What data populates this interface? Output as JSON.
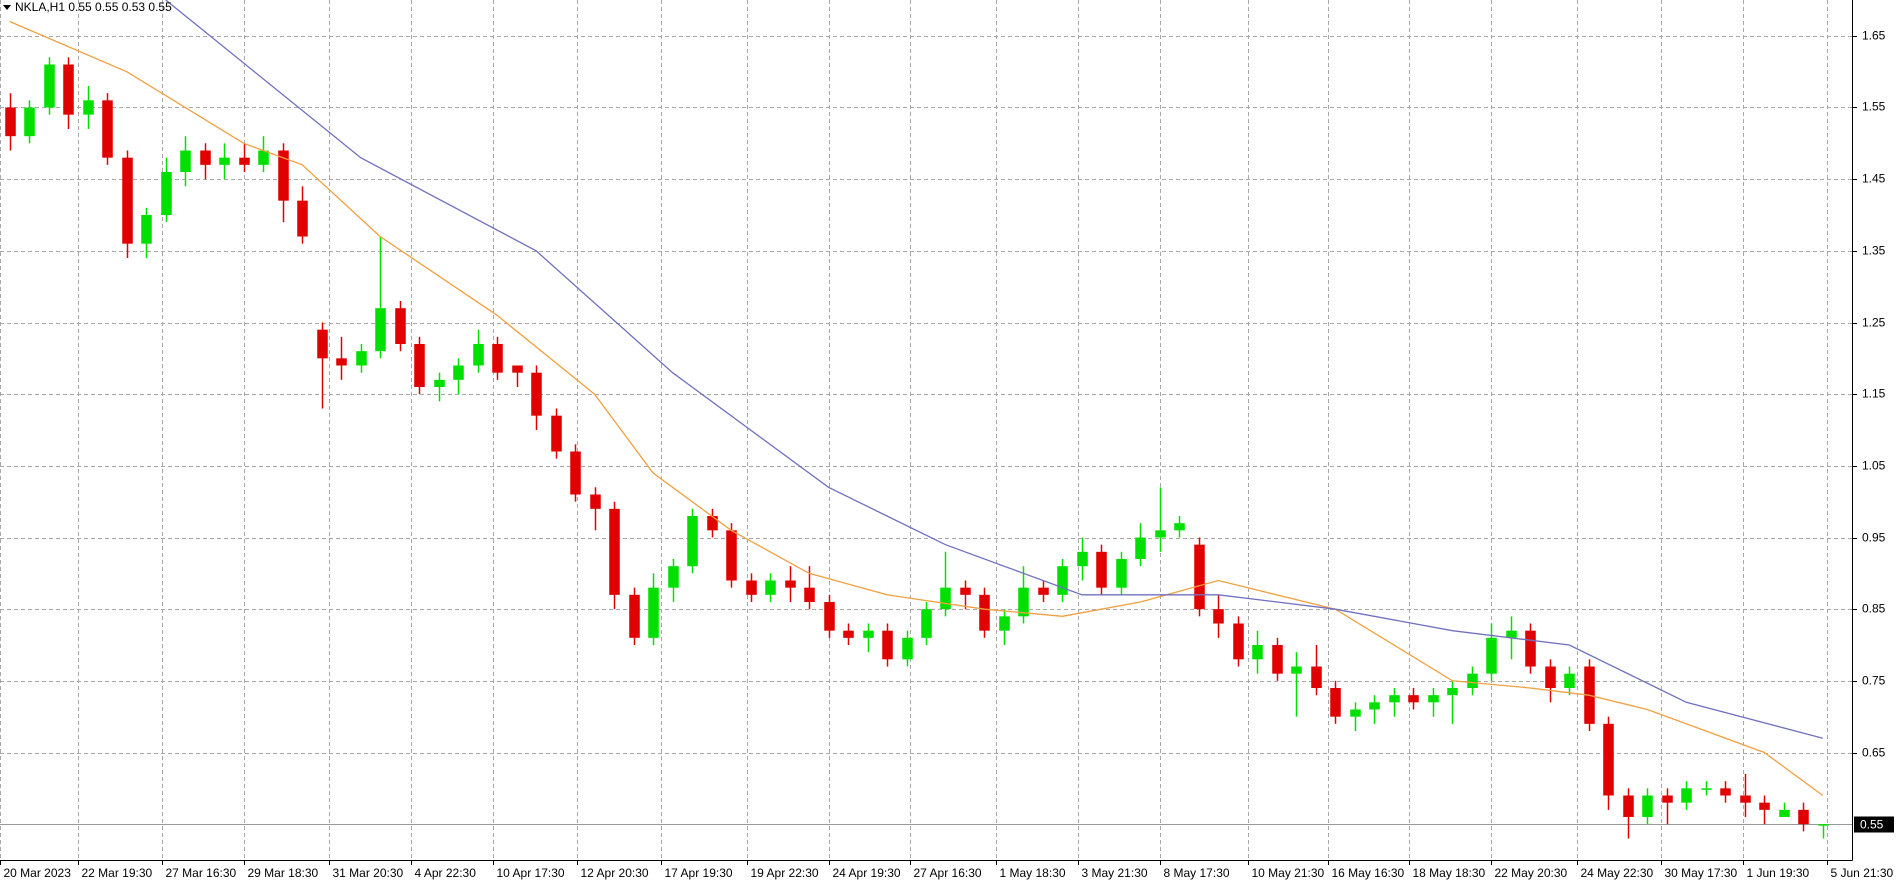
{
  "chart_data": {
    "type": "candlestick",
    "title": "NKLA,H1  0.55 0.55 0.53 0.55",
    "up_color": "#00e000",
    "down_color": "#e00000",
    "open": [
      1.55,
      1.51,
      1.55,
      1.61,
      1.54,
      1.56,
      1.48,
      1.36,
      1.4,
      1.46,
      1.49,
      1.47,
      1.48,
      1.47,
      1.49,
      1.42,
      1.24,
      1.2,
      1.19,
      1.21,
      1.27,
      1.22,
      1.16,
      1.17,
      1.19,
      1.22,
      1.19,
      1.18,
      1.12,
      1.07,
      1.01,
      0.99,
      0.87,
      0.81,
      0.88,
      0.91,
      0.98,
      0.96,
      0.89,
      0.87,
      0.89,
      0.88,
      0.86,
      0.82,
      0.81,
      0.82,
      0.78,
      0.81,
      0.85,
      0.88,
      0.87,
      0.82,
      0.84,
      0.88,
      0.87,
      0.91,
      0.93,
      0.88,
      0.92,
      0.95,
      0.96,
      0.94,
      0.85,
      0.83,
      0.78,
      0.8,
      0.76,
      0.77,
      0.74,
      0.7,
      0.71,
      0.72,
      0.73,
      0.72,
      0.73,
      0.74,
      0.76,
      0.81,
      0.82,
      0.77,
      0.74,
      0.77,
      0.69,
      0.59,
      0.56,
      0.59,
      0.58,
      0.6,
      0.6,
      0.59,
      0.58,
      0.56,
      0.57,
      0.55
    ],
    "high": [
      1.57,
      1.56,
      1.62,
      1.62,
      1.58,
      1.57,
      1.49,
      1.41,
      1.48,
      1.51,
      1.5,
      1.5,
      1.5,
      1.51,
      1.5,
      1.44,
      1.25,
      1.23,
      1.22,
      1.37,
      1.28,
      1.23,
      1.18,
      1.2,
      1.24,
      1.23,
      1.19,
      1.19,
      1.13,
      1.08,
      1.02,
      1.0,
      0.88,
      0.9,
      0.92,
      0.99,
      0.99,
      0.97,
      0.9,
      0.9,
      0.91,
      0.91,
      0.87,
      0.83,
      0.83,
      0.83,
      0.82,
      0.86,
      0.93,
      0.89,
      0.88,
      0.85,
      0.91,
      0.89,
      0.92,
      0.95,
      0.94,
      0.93,
      0.97,
      1.02,
      0.98,
      0.95,
      0.87,
      0.84,
      0.82,
      0.81,
      0.79,
      0.8,
      0.75,
      0.72,
      0.73,
      0.74,
      0.74,
      0.74,
      0.75,
      0.77,
      0.83,
      0.84,
      0.83,
      0.78,
      0.77,
      0.78,
      0.7,
      0.6,
      0.6,
      0.6,
      0.61,
      0.61,
      0.61,
      0.62,
      0.59,
      0.58,
      0.58,
      0.55
    ],
    "low": [
      1.49,
      1.5,
      1.54,
      1.52,
      1.52,
      1.47,
      1.34,
      1.34,
      1.39,
      1.44,
      1.45,
      1.45,
      1.46,
      1.46,
      1.39,
      1.36,
      1.13,
      1.17,
      1.18,
      1.2,
      1.21,
      1.15,
      1.14,
      1.15,
      1.18,
      1.17,
      1.16,
      1.1,
      1.06,
      1.0,
      0.96,
      0.85,
      0.8,
      0.8,
      0.86,
      0.9,
      0.95,
      0.88,
      0.86,
      0.86,
      0.86,
      0.85,
      0.81,
      0.8,
      0.79,
      0.77,
      0.77,
      0.8,
      0.84,
      0.85,
      0.81,
      0.8,
      0.83,
      0.86,
      0.86,
      0.89,
      0.87,
      0.87,
      0.91,
      0.93,
      0.95,
      0.84,
      0.81,
      0.77,
      0.76,
      0.75,
      0.7,
      0.73,
      0.69,
      0.68,
      0.69,
      0.7,
      0.71,
      0.7,
      0.69,
      0.73,
      0.75,
      0.78,
      0.76,
      0.72,
      0.73,
      0.68,
      0.57,
      0.53,
      0.55,
      0.55,
      0.57,
      0.59,
      0.58,
      0.56,
      0.55,
      0.56,
      0.54,
      0.53
    ],
    "close": [
      1.51,
      1.55,
      1.61,
      1.54,
      1.56,
      1.48,
      1.36,
      1.4,
      1.46,
      1.49,
      1.47,
      1.48,
      1.47,
      1.49,
      1.42,
      1.37,
      1.2,
      1.19,
      1.21,
      1.27,
      1.22,
      1.16,
      1.17,
      1.19,
      1.22,
      1.18,
      1.18,
      1.12,
      1.07,
      1.01,
      0.99,
      0.87,
      0.81,
      0.88,
      0.91,
      0.98,
      0.96,
      0.89,
      0.87,
      0.89,
      0.88,
      0.86,
      0.82,
      0.81,
      0.82,
      0.78,
      0.81,
      0.85,
      0.88,
      0.87,
      0.82,
      0.84,
      0.88,
      0.87,
      0.91,
      0.93,
      0.88,
      0.92,
      0.95,
      0.96,
      0.97,
      0.85,
      0.83,
      0.78,
      0.8,
      0.76,
      0.77,
      0.74,
      0.7,
      0.71,
      0.72,
      0.73,
      0.72,
      0.73,
      0.74,
      0.76,
      0.81,
      0.82,
      0.77,
      0.74,
      0.76,
      0.69,
      0.59,
      0.56,
      0.59,
      0.58,
      0.6,
      0.6,
      0.59,
      0.58,
      0.57,
      0.57,
      0.55,
      0.55
    ],
    "lines": [
      {
        "color": "#f0a040",
        "x": [
          0,
          6,
          12,
          15,
          19,
          25,
          30,
          33,
          37,
          41,
          45,
          50,
          54,
          58,
          62,
          68,
          74,
          78,
          81,
          84,
          90,
          93
        ],
        "values": [
          1.67,
          1.6,
          1.5,
          1.47,
          1.37,
          1.26,
          1.15,
          1.04,
          0.96,
          0.9,
          0.87,
          0.85,
          0.84,
          0.86,
          0.89,
          0.85,
          0.75,
          0.74,
          0.73,
          0.71,
          0.65,
          0.59
        ]
      },
      {
        "color": "#7070c0",
        "x": [
          8,
          18,
          27,
          34,
          42,
          48,
          55,
          62,
          68,
          74,
          80,
          86,
          93
        ],
        "values": [
          1.7,
          1.48,
          1.35,
          1.18,
          1.02,
          0.94,
          0.87,
          0.87,
          0.85,
          0.82,
          0.8,
          0.72,
          0.67
        ]
      }
    ],
    "last": 0.55,
    "xlim": [
      -0.5,
      94.5
    ],
    "xticks": [
      {
        "value": -0.5,
        "label": "20 Mar 2023"
      },
      {
        "value": 3.5,
        "label": "22 Mar 19:30"
      },
      {
        "value": 7.8,
        "label": "27 Mar 16:30"
      },
      {
        "value": 12.0,
        "label": "29 Mar 18:30"
      },
      {
        "value": 16.4,
        "label": "31 Mar 20:30"
      },
      {
        "value": 20.6,
        "label": "4 Apr 22:30"
      },
      {
        "value": 24.8,
        "label": "10 Apr 17:30"
      },
      {
        "value": 29.1,
        "label": "12 Apr 20:30"
      },
      {
        "value": 33.4,
        "label": "17 Apr 19:30"
      },
      {
        "value": 37.8,
        "label": "19 Apr 22:30"
      },
      {
        "value": 42.0,
        "label": "24 Apr 19:30"
      },
      {
        "value": 46.2,
        "label": "27 Apr 16:30"
      },
      {
        "value": 50.6,
        "label": "1 May 18:30"
      },
      {
        "value": 54.8,
        "label": "3 May 21:30"
      },
      {
        "value": 59.0,
        "label": "8 May 17:30"
      },
      {
        "value": 63.5,
        "label": "10 May 21:30"
      },
      {
        "value": 67.6,
        "label": "16 May 16:30"
      },
      {
        "value": 71.8,
        "label": "18 May 18:30"
      },
      {
        "value": 76.0,
        "label": "22 May 20:30"
      },
      {
        "value": 80.4,
        "label": "24 May 22:30"
      },
      {
        "value": 84.7,
        "label": "30 May 17:30"
      },
      {
        "value": 88.9,
        "label": "1 Jun 19:30"
      },
      {
        "value": 93.2,
        "label": "5 Jun 21:30"
      }
    ],
    "ylim": [
      0.5,
      1.7
    ],
    "yticks": [
      1.65,
      1.55,
      1.45,
      1.35,
      1.25,
      1.15,
      1.05,
      0.95,
      0.85,
      0.75,
      0.65
    ],
    "grid": true
  }
}
